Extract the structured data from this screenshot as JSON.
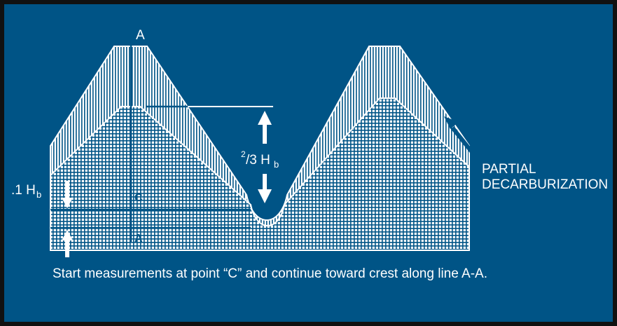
{
  "colors": {
    "background": "#005486",
    "foreground": "#ffffff",
    "frame": "#111111"
  },
  "labels": {
    "line_top": "A",
    "point_c": "C",
    "point_a": "A",
    "tenth_hb_prefix": ".1 H",
    "tenth_hb_sub": "b",
    "two_thirds_num": "2",
    "two_thirds_den": "/3 H",
    "two_thirds_sub": "b",
    "partial_line1": "PARTIAL",
    "partial_line2": "DECARBURIZATION"
  },
  "caption": "Start measurements at point “C” and continue toward crest along line A-A.",
  "icons": [
    "arrow-up-icon",
    "arrow-down-icon",
    "pointer-arrow-icon"
  ]
}
